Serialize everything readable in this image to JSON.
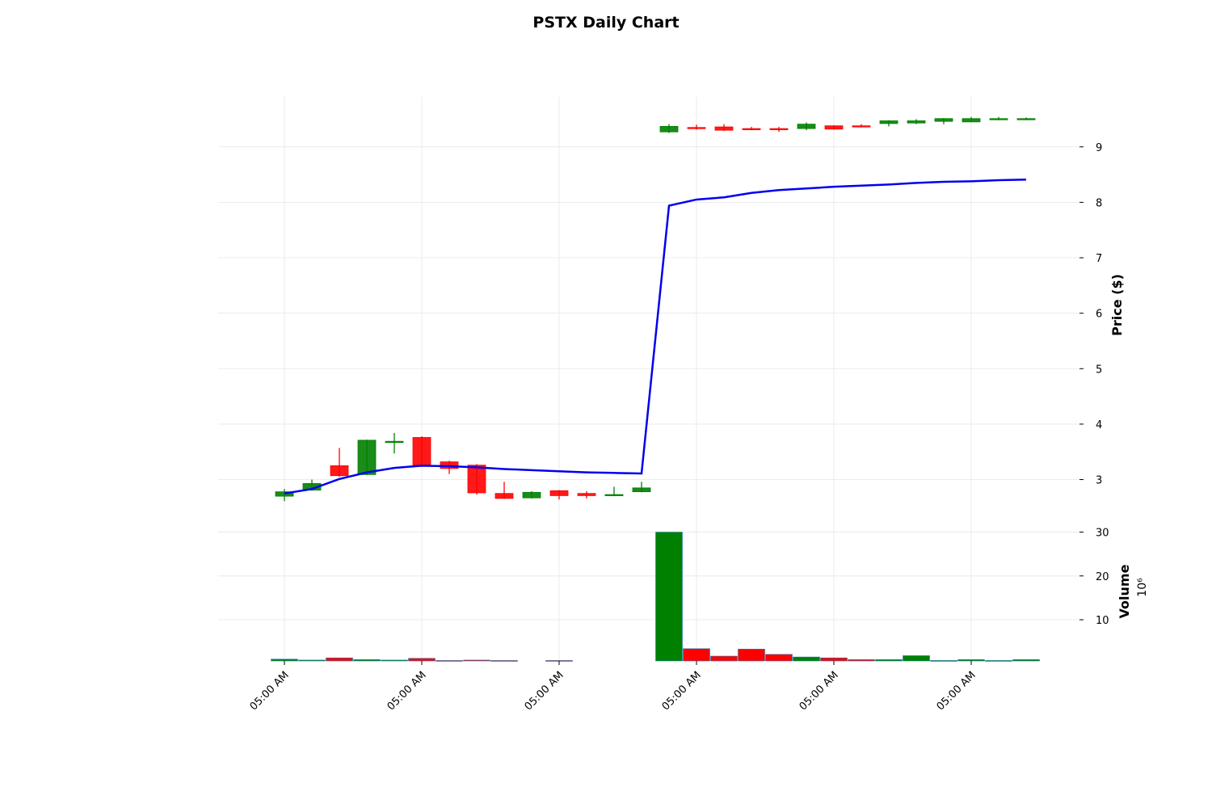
{
  "title": "PSTX Daily Chart",
  "chart_data": {
    "type": "candlestick",
    "title": "PSTX Daily Chart",
    "x_tick_labels": [
      "05:00 AM",
      "05:00 AM",
      "05:00 AM",
      "05:00 AM",
      "05:00 AM",
      "05:00 AM"
    ],
    "colors": {
      "up": "#008000",
      "down": "#ff0000",
      "moving_average": "#0000ee",
      "grid": "#e6e6e6"
    },
    "price_panel": {
      "ylabel": "Price ($)",
      "ylim": [
        2.25,
        9.9
      ],
      "yticks": [
        3,
        4,
        5,
        6,
        7,
        8,
        9
      ],
      "grid": true,
      "candles": [
        {
          "o": 2.7,
          "h": 2.83,
          "l": 2.61,
          "c": 2.78
        },
        {
          "o": 2.81,
          "h": 3.0,
          "l": 2.8,
          "c": 2.93
        },
        {
          "o": 3.25,
          "h": 3.57,
          "l": 3.05,
          "c": 3.07
        },
        {
          "o": 3.09,
          "h": 3.72,
          "l": 3.08,
          "c": 3.71
        },
        {
          "o": 3.67,
          "h": 3.84,
          "l": 3.47,
          "c": 3.69
        },
        {
          "o": 3.76,
          "h": 3.78,
          "l": 3.25,
          "c": 3.26
        },
        {
          "o": 3.32,
          "h": 3.34,
          "l": 3.1,
          "c": 3.2
        },
        {
          "o": 3.26,
          "h": 3.28,
          "l": 2.73,
          "c": 2.76
        },
        {
          "o": 2.75,
          "h": 2.96,
          "l": 2.65,
          "c": 2.66
        },
        {
          "o": 2.67,
          "h": 2.79,
          "l": 2.66,
          "c": 2.77
        },
        {
          "o": 2.8,
          "h": 2.81,
          "l": 2.64,
          "c": 2.71
        },
        {
          "o": 2.75,
          "h": 2.79,
          "l": 2.66,
          "c": 2.71
        },
        {
          "o": 2.71,
          "h": 2.87,
          "l": 2.7,
          "c": 2.73
        },
        {
          "o": 2.78,
          "h": 2.96,
          "l": 2.77,
          "c": 2.85
        },
        {
          "o": 9.27,
          "h": 9.41,
          "l": 9.25,
          "c": 9.37
        },
        {
          "o": 9.35,
          "h": 9.4,
          "l": 9.31,
          "c": 9.33
        },
        {
          "o": 9.36,
          "h": 9.41,
          "l": 9.29,
          "c": 9.3
        },
        {
          "o": 9.33,
          "h": 9.36,
          "l": 9.3,
          "c": 9.31
        },
        {
          "o": 9.33,
          "h": 9.36,
          "l": 9.27,
          "c": 9.32
        },
        {
          "o": 9.33,
          "h": 9.44,
          "l": 9.3,
          "c": 9.41
        },
        {
          "o": 9.38,
          "h": 9.39,
          "l": 9.31,
          "c": 9.32
        },
        {
          "o": 9.38,
          "h": 9.41,
          "l": 9.35,
          "c": 9.36
        },
        {
          "o": 9.42,
          "h": 9.48,
          "l": 9.37,
          "c": 9.47
        },
        {
          "o": 9.43,
          "h": 9.5,
          "l": 9.41,
          "c": 9.47
        },
        {
          "o": 9.46,
          "h": 9.52,
          "l": 9.41,
          "c": 9.51
        },
        {
          "o": 9.45,
          "h": 9.54,
          "l": 9.45,
          "c": 9.51
        },
        {
          "o": 9.5,
          "h": 9.54,
          "l": 9.48,
          "c": 9.51
        },
        {
          "o": 9.5,
          "h": 9.53,
          "l": 9.48,
          "c": 9.51
        }
      ],
      "moving_average": [
        2.75,
        2.83,
        3.01,
        3.13,
        3.21,
        3.25,
        3.24,
        3.22,
        3.19,
        3.17,
        3.15,
        3.13,
        3.12,
        3.11,
        7.94,
        8.05,
        8.09,
        8.17,
        8.22,
        8.25,
        8.28,
        8.3,
        8.32,
        8.35,
        8.37,
        8.38,
        8.4,
        8.41
      ]
    },
    "volume_panel": {
      "ylabel": "Volume",
      "scale_label": "10⁶",
      "ylim": [
        0.6,
        32.5
      ],
      "yticks": [
        10,
        20,
        30
      ],
      "grid": true,
      "bars": [
        {
          "v": 1.0,
          "dir": "up"
        },
        {
          "v": 0.8,
          "dir": "up"
        },
        {
          "v": 1.3,
          "dir": "down"
        },
        {
          "v": 0.9,
          "dir": "up"
        },
        {
          "v": 0.8,
          "dir": "up"
        },
        {
          "v": 1.2,
          "dir": "down"
        },
        {
          "v": 0.7,
          "dir": "down"
        },
        {
          "v": 0.8,
          "dir": "down"
        },
        {
          "v": 0.7,
          "dir": "down"
        },
        {
          "v": 0.0,
          "dir": "up"
        },
        {
          "v": 0.7,
          "dir": "down"
        },
        {
          "v": 0.0,
          "dir": "down"
        },
        {
          "v": 0.0,
          "dir": "up"
        },
        {
          "v": 0.0,
          "dir": "up"
        },
        {
          "v": 30.0,
          "dir": "up"
        },
        {
          "v": 3.4,
          "dir": "down"
        },
        {
          "v": 1.7,
          "dir": "down"
        },
        {
          "v": 3.3,
          "dir": "down"
        },
        {
          "v": 2.1,
          "dir": "down"
        },
        {
          "v": 1.5,
          "dir": "up"
        },
        {
          "v": 1.3,
          "dir": "down"
        },
        {
          "v": 0.9,
          "dir": "down"
        },
        {
          "v": 0.9,
          "dir": "up"
        },
        {
          "v": 1.8,
          "dir": "up"
        },
        {
          "v": 0.7,
          "dir": "up"
        },
        {
          "v": 0.9,
          "dir": "up"
        },
        {
          "v": 0.7,
          "dir": "up"
        },
        {
          "v": 0.9,
          "dir": "up"
        }
      ]
    }
  }
}
